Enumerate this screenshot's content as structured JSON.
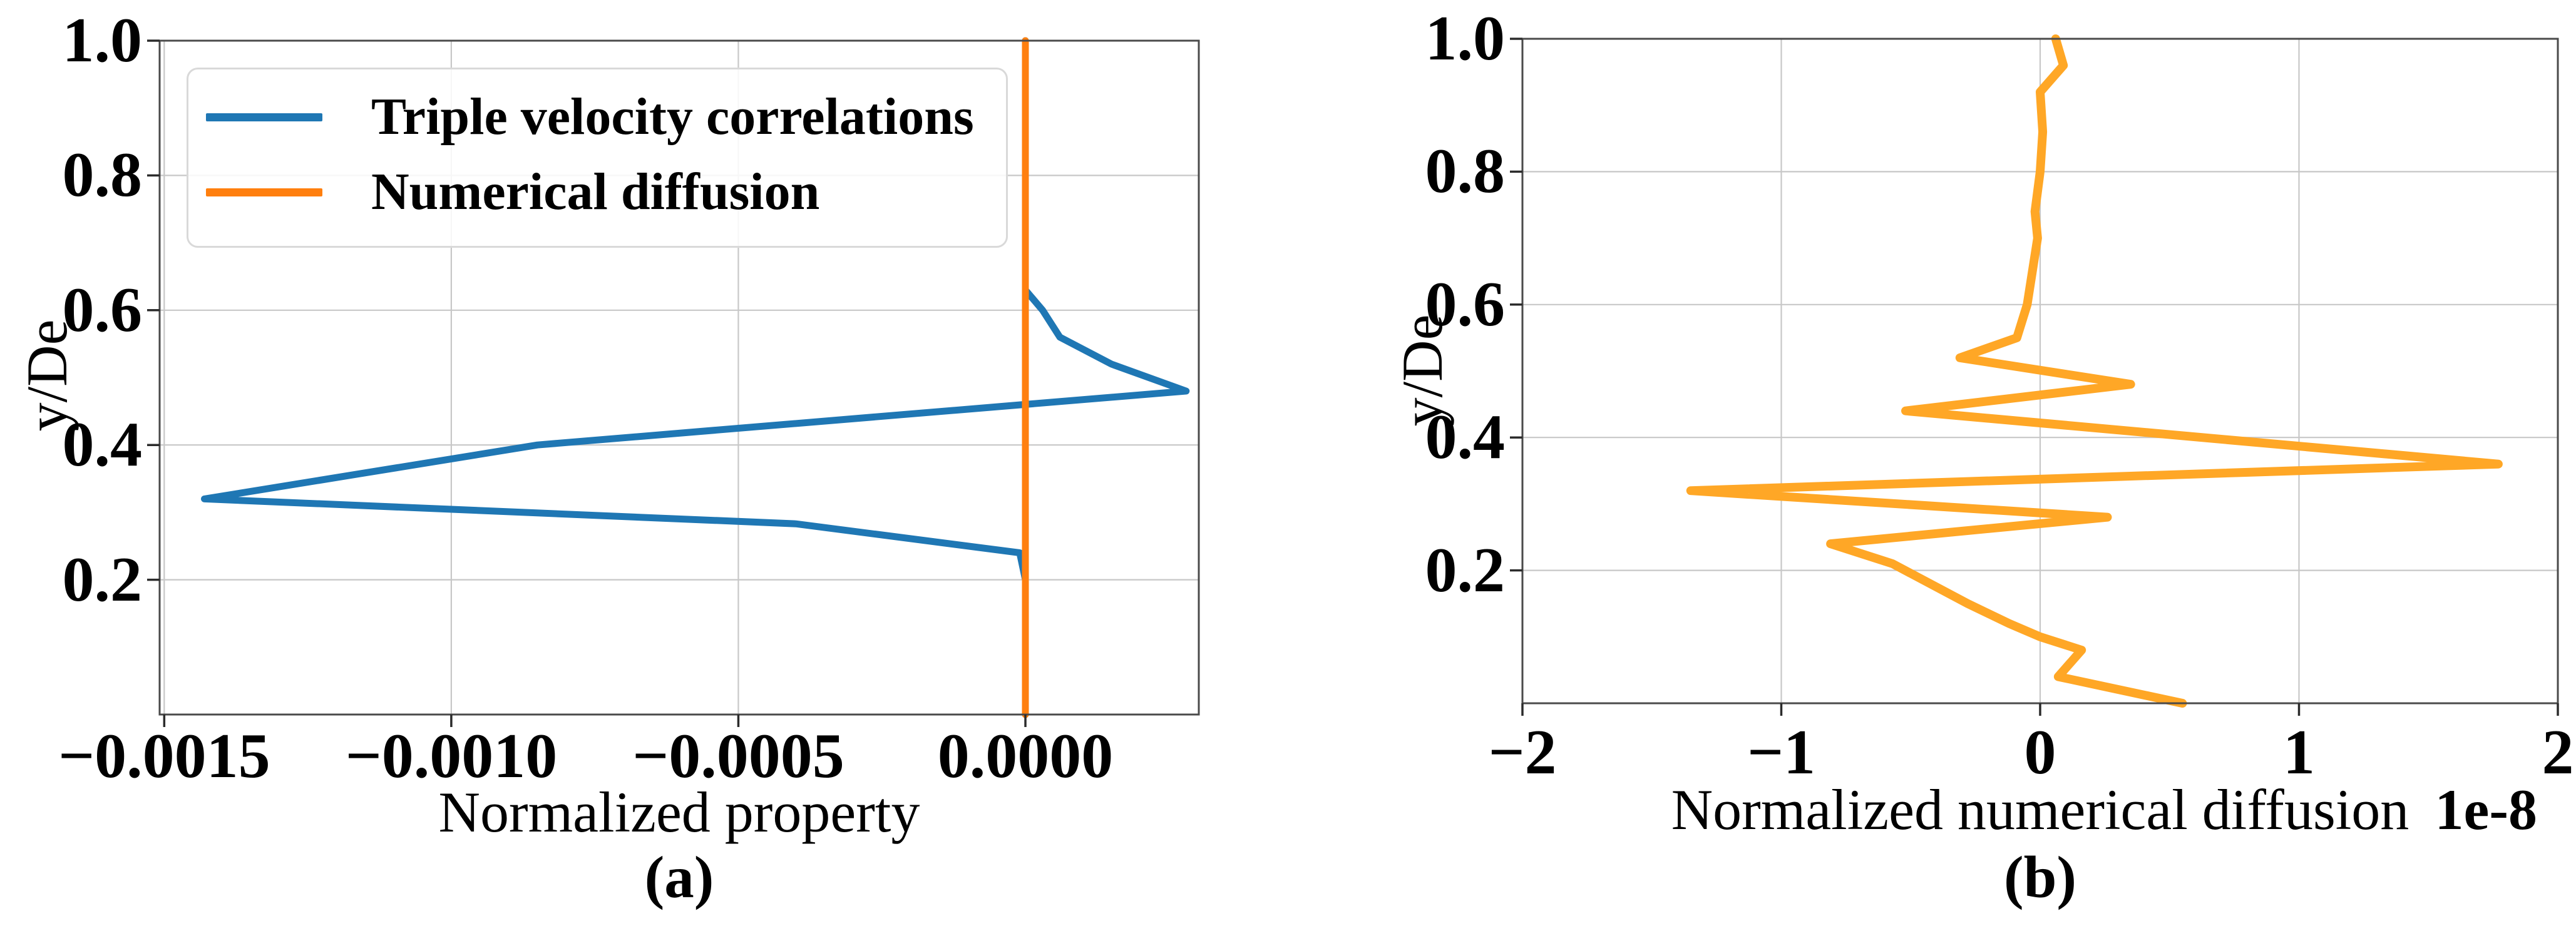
{
  "figure_caption_left": "(a)",
  "figure_caption_right": "(b)",
  "chart_data": [
    {
      "id": "a",
      "type": "line",
      "title": "",
      "caption": "(a)",
      "xlabel": "Normalized property",
      "ylabel": "y/De",
      "offset_text": "",
      "xlim": [
        -0.001508,
        0.000302
      ],
      "ylim": [
        0,
        1
      ],
      "grid": true,
      "legend_position": "upper left",
      "xticks": [
        {
          "value": -0.0015,
          "label": "−0.0015"
        },
        {
          "value": -0.001,
          "label": "−0.0010"
        },
        {
          "value": -0.0005,
          "label": "−0.0005"
        },
        {
          "value": 0.0,
          "label": "0.0000"
        }
      ],
      "yticks": [
        {
          "value": 0.2,
          "label": "0.2"
        },
        {
          "value": 0.4,
          "label": "0.4"
        },
        {
          "value": 0.6,
          "label": "0.6"
        },
        {
          "value": 0.8,
          "label": "0.8"
        },
        {
          "value": 1.0,
          "label": "1.0"
        }
      ],
      "legend": {
        "items": [
          {
            "label": "Triple velocity correlations",
            "color": "#1f77b4"
          },
          {
            "label": "Numerical diffusion",
            "color": "#ff7f0e"
          }
        ]
      },
      "series": [
        {
          "name": "Triple velocity correlations",
          "color": "#1f77b4",
          "stroke_width": 11,
          "points": [
            [
              0.0,
              1.0
            ],
            [
              0.0,
              0.63
            ],
            [
              3e-05,
              0.6
            ],
            [
              6e-05,
              0.56
            ],
            [
              0.00015,
              0.52
            ],
            [
              0.00028,
              0.48
            ],
            [
              -0.00085,
              0.4
            ],
            [
              -0.00143,
              0.32
            ],
            [
              -0.0004,
              0.283
            ],
            [
              -1e-05,
              0.24
            ],
            [
              0.0,
              0.2
            ],
            [
              0.0,
              0.0
            ]
          ]
        },
        {
          "name": "Numerical diffusion",
          "color": "#ff7f0e",
          "stroke_width": 11,
          "points": [
            [
              0.0,
              0.0
            ],
            [
              0.0,
              1.0
            ]
          ]
        }
      ]
    },
    {
      "id": "b",
      "type": "line",
      "title": "",
      "caption": "(b)",
      "xlabel": "Normalized numerical diffusion",
      "ylabel": "y/De",
      "offset_text": "1e-8",
      "xlim": [
        -2,
        2
      ],
      "ylim": [
        0,
        1
      ],
      "grid": true,
      "legend_position": "none",
      "xticks": [
        {
          "value": -2,
          "label": "−2"
        },
        {
          "value": -1,
          "label": "−1"
        },
        {
          "value": 0,
          "label": "0"
        },
        {
          "value": 1,
          "label": "1"
        },
        {
          "value": 2,
          "label": "2"
        }
      ],
      "yticks": [
        {
          "value": 0.2,
          "label": "0.2"
        },
        {
          "value": 0.4,
          "label": "0.4"
        },
        {
          "value": 0.6,
          "label": "0.6"
        },
        {
          "value": 0.8,
          "label": "0.8"
        },
        {
          "value": 1.0,
          "label": "1.0"
        }
      ],
      "legend": {
        "items": []
      },
      "series": [
        {
          "name": "Numerical diffusion",
          "color": "#ffa726",
          "stroke_width": 14,
          "points": [
            [
              0.06,
              1.0
            ],
            [
              0.09,
              0.96
            ],
            [
              0.0,
              0.92
            ],
            [
              0.01,
              0.86
            ],
            [
              0.0,
              0.8
            ],
            [
              -0.02,
              0.74
            ],
            [
              -0.01,
              0.7
            ],
            [
              -0.03,
              0.65
            ],
            [
              -0.05,
              0.6
            ],
            [
              -0.09,
              0.55
            ],
            [
              -0.31,
              0.52
            ],
            [
              0.35,
              0.48
            ],
            [
              -0.52,
              0.44
            ],
            [
              1.77,
              0.36
            ],
            [
              -1.35,
              0.32
            ],
            [
              0.26,
              0.28
            ],
            [
              -0.81,
              0.24
            ],
            [
              -0.57,
              0.21
            ],
            [
              -0.28,
              0.15
            ],
            [
              -0.12,
              0.12
            ],
            [
              0.0,
              0.1
            ],
            [
              0.16,
              0.08
            ],
            [
              0.07,
              0.04
            ],
            [
              0.55,
              0.0
            ]
          ]
        }
      ]
    }
  ]
}
